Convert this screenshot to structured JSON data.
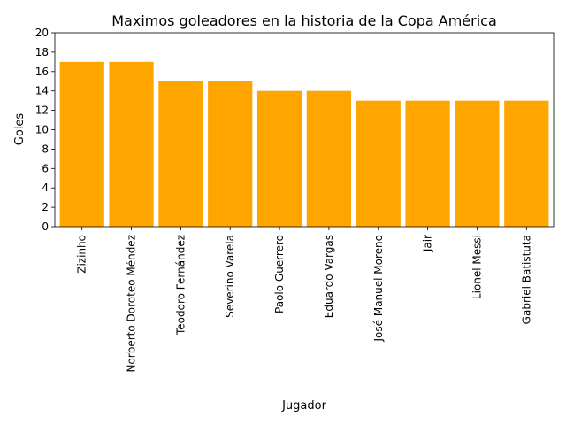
{
  "chart_data": {
    "type": "bar",
    "title": "Maximos goleadores en la historia de la Copa América",
    "xlabel": "Jugador",
    "ylabel": "Goles",
    "categories": [
      "Zizinho",
      "Norberto Doroteo Méndez",
      "Teodoro Fernández",
      "Severino Varela",
      "Paolo Guerrero",
      "Eduardo Vargas",
      "José Manuel Moreno",
      "Jair",
      "Lionel Messi",
      "Gabriel Batistuta"
    ],
    "values": [
      17,
      17,
      15,
      15,
      14,
      14,
      13,
      13,
      13,
      13
    ],
    "ylim": [
      0,
      20
    ],
    "yticks": [
      0,
      2,
      4,
      6,
      8,
      10,
      12,
      14,
      16,
      18,
      20
    ],
    "bar_color": "#FFA500",
    "grid": false,
    "legend": false
  }
}
